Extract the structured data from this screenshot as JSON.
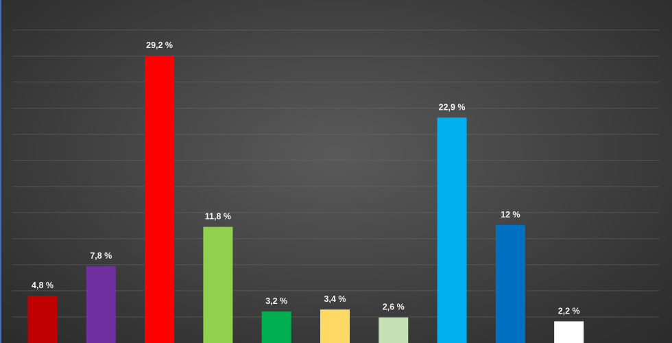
{
  "chart_data": {
    "type": "bar",
    "title": "",
    "xlabel": "",
    "ylabel": "",
    "ylim": [
      0,
      32.5
    ],
    "grid": true,
    "legend": "none",
    "unit_suffix": " %",
    "values": [
      4.8,
      7.8,
      29.2,
      11.8,
      3.2,
      3.4,
      2.6,
      22.9,
      12,
      2.2
    ],
    "labels": [
      "4,8 %",
      "7,8 %",
      "29,2 %",
      "11,8 %",
      "3,2 %",
      "3,4 %",
      "2,6 %",
      "22,9 %",
      "12 %",
      "2,2 %"
    ],
    "colors": [
      "#c00000",
      "#7030a0",
      "#ff0000",
      "#92d050",
      "#00b050",
      "#ffd966",
      "#c5e0b4",
      "#00b0f0",
      "#0070c0",
      "#ffffff"
    ]
  }
}
